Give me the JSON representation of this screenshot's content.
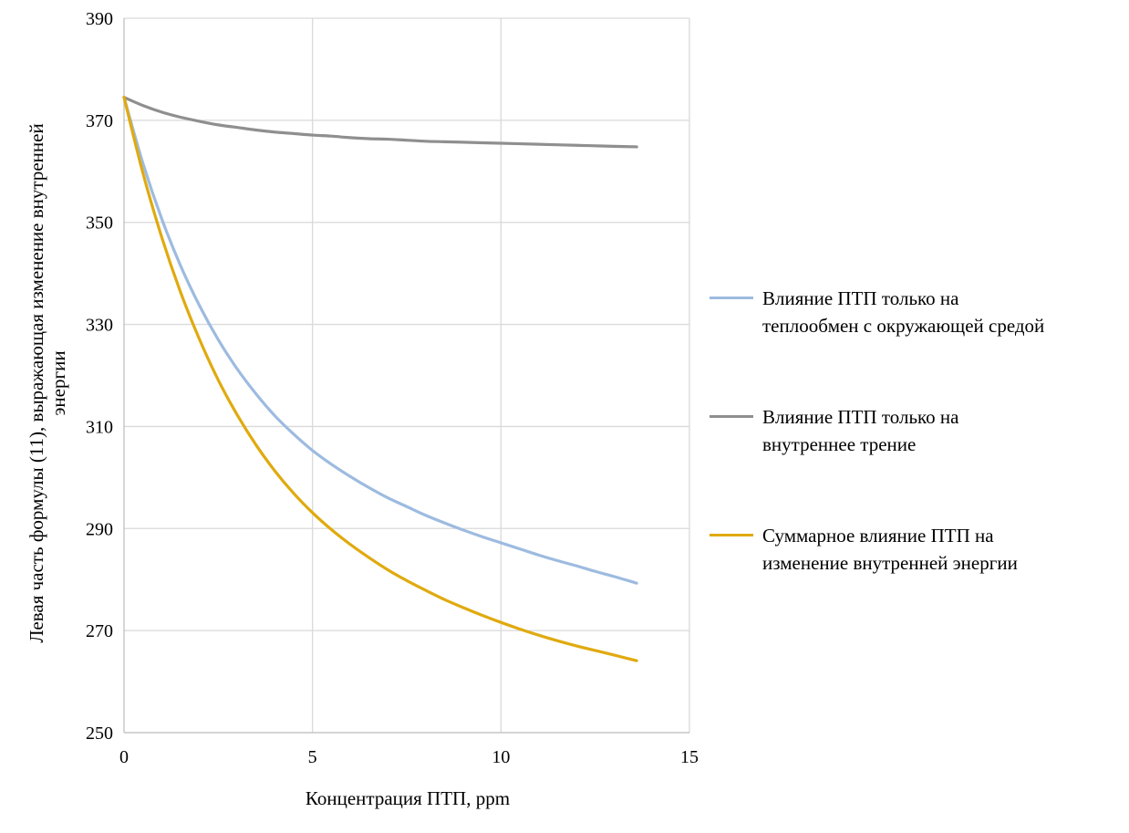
{
  "chart_data": {
    "type": "line",
    "xlabel": "Концентрация ПТП, ppm",
    "ylabel_lines": [
      "Левая часть формулы (11), выражающая изменение внутренней",
      "энергии"
    ],
    "xlim": [
      0,
      15
    ],
    "ylim": [
      250,
      390
    ],
    "x_ticks": [
      "0",
      "5",
      "10",
      "15"
    ],
    "y_ticks": [
      "250",
      "270",
      "290",
      "310",
      "330",
      "350",
      "370",
      "390"
    ],
    "grid": true,
    "legend_position": "right",
    "x": [
      0,
      0.5,
      1,
      1.5,
      2,
      2.5,
      3,
      3.5,
      4,
      4.5,
      5,
      5.5,
      6,
      6.5,
      7,
      7.5,
      8,
      8.5,
      9,
      9.5,
      10,
      10.5,
      11,
      11.5,
      12,
      12.5,
      13,
      13.6
    ],
    "series": [
      {
        "name": "Влияние ПТП только на теплообмен с окружающей средой",
        "name_lines": [
          "Влияние ПТП только на",
          "теплообмен с окружающей средой"
        ],
        "color": "#9dbbe0",
        "values": [
          374.5,
          361.6,
          350.7,
          341.5,
          333.7,
          327.0,
          321.3,
          316.4,
          312.1,
          308.5,
          305.3,
          302.6,
          300.2,
          298.0,
          296.0,
          294.3,
          292.6,
          291.1,
          289.7,
          288.4,
          287.2,
          286.0,
          284.8,
          283.7,
          282.7,
          281.6,
          280.6,
          279.3
        ]
      },
      {
        "name": "Влияние ПТП только на внутреннее трение",
        "name_lines": [
          "Влияние ПТП только на",
          "внутреннее трение"
        ],
        "color": "#8f8f8f",
        "values": [
          374.5,
          372.9,
          371.6,
          370.6,
          369.8,
          369.1,
          368.6,
          368.1,
          367.7,
          367.4,
          367.1,
          366.9,
          366.6,
          366.4,
          366.3,
          366.1,
          365.9,
          365.8,
          365.7,
          365.6,
          365.5,
          365.4,
          365.3,
          365.2,
          365.1,
          365.0,
          364.9,
          364.8
        ]
      },
      {
        "name": "Суммарное влияние ПТП на изменение внутренней энергии",
        "name_lines": [
          "Суммарное влияние ПТП на",
          "изменение внутренней энергии"
        ],
        "color": "#e0aa0f",
        "values": [
          374.5,
          359.7,
          347.1,
          336.3,
          327.1,
          319.1,
          312.3,
          306.4,
          301.3,
          296.9,
          293.1,
          289.8,
          286.9,
          284.3,
          281.9,
          279.8,
          277.9,
          276.1,
          274.5,
          273.0,
          271.6,
          270.3,
          269.1,
          268.0,
          267.0,
          266.1,
          265.2,
          264.1
        ]
      }
    ]
  }
}
